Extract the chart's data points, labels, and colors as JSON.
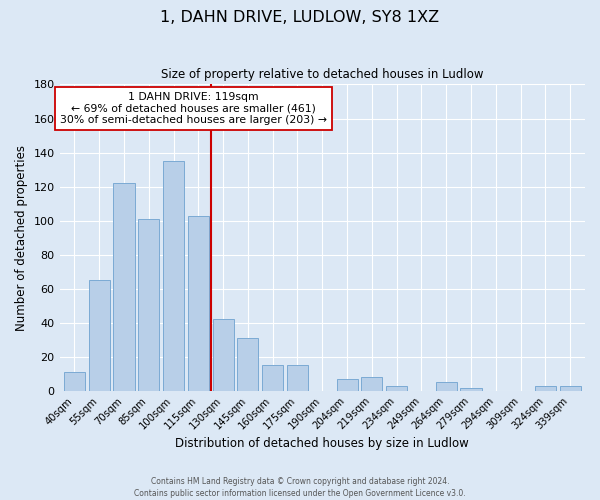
{
  "title": "1, DAHN DRIVE, LUDLOW, SY8 1XZ",
  "subtitle": "Size of property relative to detached houses in Ludlow",
  "xlabel": "Distribution of detached houses by size in Ludlow",
  "ylabel": "Number of detached properties",
  "bar_labels": [
    "40sqm",
    "55sqm",
    "70sqm",
    "85sqm",
    "100sqm",
    "115sqm",
    "130sqm",
    "145sqm",
    "160sqm",
    "175sqm",
    "190sqm",
    "204sqm",
    "219sqm",
    "234sqm",
    "249sqm",
    "264sqm",
    "279sqm",
    "294sqm",
    "309sqm",
    "324sqm",
    "339sqm"
  ],
  "bar_values": [
    11,
    65,
    122,
    101,
    135,
    103,
    42,
    31,
    15,
    15,
    0,
    7,
    8,
    3,
    0,
    5,
    2,
    0,
    0,
    3,
    3
  ],
  "bar_color": "#b8cfe8",
  "bar_edge_color": "#7baad4",
  "ylim": [
    0,
    180
  ],
  "yticks": [
    0,
    20,
    40,
    60,
    80,
    100,
    120,
    140,
    160,
    180
  ],
  "property_line_x": 5.5,
  "property_line_color": "#cc0000",
  "annotation_title": "1 DAHN DRIVE: 119sqm",
  "annotation_line1": "← 69% of detached houses are smaller (461)",
  "annotation_line2": "30% of semi-detached houses are larger (203) →",
  "annotation_box_color": "#ffffff",
  "annotation_box_edge": "#cc0000",
  "footer_line1": "Contains HM Land Registry data © Crown copyright and database right 2024.",
  "footer_line2": "Contains public sector information licensed under the Open Government Licence v3.0.",
  "background_color": "#dce8f5",
  "plot_background": "#dce8f5",
  "grid_color": "#ffffff"
}
